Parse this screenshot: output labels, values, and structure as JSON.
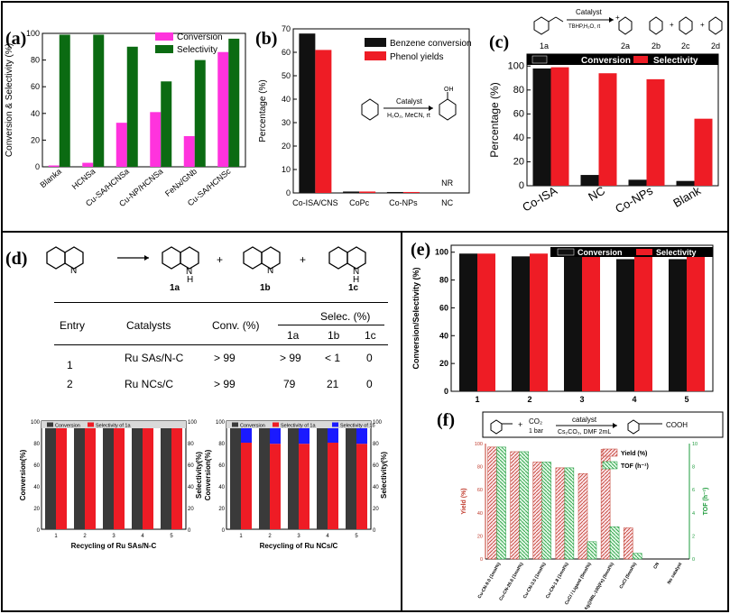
{
  "panels": {
    "a": {
      "label": "(a)"
    },
    "b": {
      "label": "(b)"
    },
    "c": {
      "label": "(c)"
    },
    "d": {
      "label": "(d)"
    },
    "e": {
      "label": "(e)"
    },
    "f": {
      "label": "(f)"
    }
  },
  "colors": {
    "black": "#111111",
    "red": "#ee1c25",
    "green": "#0b6b12",
    "magenta": "#ff33dd",
    "blue": "#1a1aff",
    "gray": "#3a3a3a",
    "pinkhatch": "#e8a3ad",
    "greenhatch": "#a7e6b3"
  },
  "schemes": {
    "c": {
      "catalyst": "Catalyst",
      "conditions": "TBHP,H₂O, rt",
      "labels": [
        "1a",
        "2a",
        "2b",
        "2c",
        "2d"
      ]
    },
    "b": {
      "catalyst": "Catalyst",
      "conditions": "H₂O₂, MeCN, rt",
      "product_group": "OH"
    },
    "d": {
      "labels": [
        "1a",
        "1b",
        "1c"
      ],
      "nh": "N",
      "h": "H",
      "plus": "+"
    },
    "f": {
      "co2": "CO₂",
      "p": "1 bar",
      "catalyst": "catalyst",
      "conditions": "Cs₂CO₃, DMF 2mL",
      "acid": "COOH",
      "plus": "+"
    }
  },
  "table_d": {
    "headers": [
      "Entry",
      "Catalysts",
      "Conv. (%)",
      "Selec. (%)"
    ],
    "subheaders": [
      "1a",
      "1b",
      "1c"
    ],
    "rows": [
      [
        "1",
        "Ru SAs/N-C",
        "> 99",
        "> 99",
        "< 1",
        "0"
      ],
      [
        "2",
        "Ru NCs/C",
        "> 99",
        "79",
        "21",
        "0"
      ]
    ]
  },
  "chart_data": [
    {
      "id": "a",
      "type": "bar",
      "categories": [
        "Blank",
        "HCNS",
        "Cu-SA/HCNS",
        "Cu-NP/HCNS",
        "FeNx/GN",
        "Cu-SA/HCNS"
      ],
      "category_suffix": [
        "a",
        "a",
        "a",
        "a",
        "b",
        "c"
      ],
      "series": [
        {
          "name": "Conversion",
          "values": [
            1,
            3,
            33,
            41,
            23,
            86
          ]
        },
        {
          "name": "Selectivity",
          "values": [
            99,
            99,
            90,
            64,
            80,
            96
          ]
        }
      ],
      "ylabel": "Conversion & Selectivity (%)",
      "ylim": [
        0,
        100
      ],
      "yticks": [
        0,
        20,
        40,
        60,
        80,
        100
      ],
      "legend": "top-right"
    },
    {
      "id": "b",
      "type": "bar",
      "categories": [
        "Co-ISA/CNS",
        "CoPc",
        "Co-NPs",
        "NC"
      ],
      "series": [
        {
          "name": "Benzene conversion",
          "values": [
            68,
            0.6,
            0.4,
            0
          ]
        },
        {
          "name": "Phenol yields",
          "values": [
            61,
            0.6,
            0.4,
            0
          ]
        }
      ],
      "annotation": "NR",
      "ylabel": "Percentage (%)",
      "ylim": [
        0,
        70
      ],
      "yticks": [
        0,
        10,
        20,
        30,
        40,
        50,
        60,
        70
      ],
      "legend": "top-right"
    },
    {
      "id": "c",
      "type": "bar",
      "categories": [
        "Co-ISA",
        "NC",
        "Co-NPs",
        "Blank"
      ],
      "series": [
        {
          "name": "Conversion",
          "values": [
            98,
            9,
            5,
            4
          ]
        },
        {
          "name": "Selectivity",
          "values": [
            99,
            94,
            89,
            56
          ]
        }
      ],
      "ylabel": "Percentage (%)",
      "ylim": [
        0,
        110
      ],
      "yticks": [
        0,
        20,
        40,
        60,
        80,
        100
      ],
      "legend": "top"
    },
    {
      "id": "d1",
      "type": "bar",
      "categories": [
        "1",
        "2",
        "3",
        "4",
        "5"
      ],
      "series": [
        {
          "name": "Conversion",
          "values": [
            100,
            100,
            100,
            100,
            100
          ]
        },
        {
          "name": "Selectivity of 1a",
          "values": [
            100,
            100,
            100,
            100,
            100
          ]
        }
      ],
      "xlabel": "Recycling of Ru SAs/N-C",
      "ylabel": "Conversion(%)",
      "ylabel2": "Selectivity(%)",
      "ylim": [
        0,
        100
      ],
      "yticks": [
        0,
        20,
        40,
        60,
        80,
        100
      ]
    },
    {
      "id": "d2",
      "type": "bar",
      "categories": [
        "1",
        "2",
        "3",
        "4",
        "5"
      ],
      "series": [
        {
          "name": "Conversion",
          "values": [
            100,
            100,
            100,
            100,
            100
          ]
        },
        {
          "name": "Selectivity of 1a",
          "values": [
            80,
            79,
            79,
            80,
            79
          ]
        },
        {
          "name": "Selectivity of 1b",
          "values": [
            20,
            21,
            21,
            20,
            21
          ]
        }
      ],
      "xlabel": "Recycling of Ru NCs/C",
      "ylabel": "Conversion(%)",
      "ylabel2": "Selectivity(%)",
      "ylim": [
        0,
        100
      ],
      "yticks": [
        0,
        20,
        40,
        60,
        80,
        100
      ]
    },
    {
      "id": "e",
      "type": "bar",
      "categories": [
        "1",
        "2",
        "3",
        "4",
        "5"
      ],
      "series": [
        {
          "name": "Conversion",
          "values": [
            99,
            97,
            98,
            95,
            95
          ]
        },
        {
          "name": "Selectivity",
          "values": [
            99,
            99,
            99,
            99,
            99
          ]
        }
      ],
      "ylabel": "Conversion/Selectivity (%)",
      "ylim": [
        0,
        105
      ],
      "yticks": [
        0,
        20,
        40,
        60,
        80,
        100
      ],
      "legend": "top"
    },
    {
      "id": "f",
      "type": "bar",
      "categories": [
        "Cu-CN-9.0 (1mol%)",
        "Cu-CN-26.6 (1mol%)",
        "Cu-CN-3.5 (1mol%)",
        "Cu-CN-1.8 (1mol%)",
        "CuCl / Ligand (5mol%)",
        "Ag@MIL-100(Fe) (5mol%)",
        "CuCl (5mol%)",
        "CN",
        "No catalyst"
      ],
      "series": [
        {
          "name": "Yield (%)",
          "values": [
            97,
            93,
            84,
            79,
            74,
            95,
            27,
            0,
            0
          ]
        },
        {
          "name": "TOF (h⁻¹)",
          "values": [
            9.7,
            9.3,
            8.4,
            7.9,
            1.5,
            2.8,
            0.5,
            0,
            0
          ]
        }
      ],
      "ylabel": "Yield (%)",
      "ylabel2": "TOF (h⁻¹)",
      "ylim": [
        0,
        100
      ],
      "ylim2": [
        0,
        10
      ],
      "yticks": [
        0,
        20,
        40,
        60,
        80,
        100
      ],
      "yticks2": [
        0,
        2,
        4,
        6,
        8,
        10
      ],
      "legend": "top-right"
    }
  ]
}
